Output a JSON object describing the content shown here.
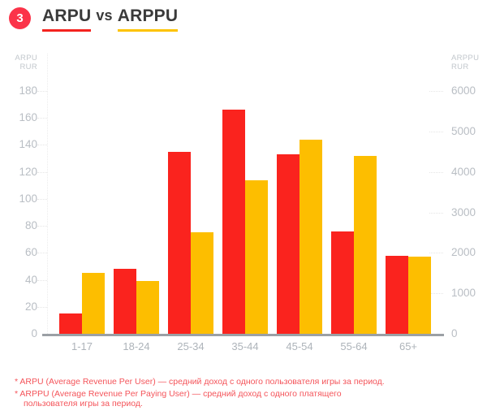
{
  "header": {
    "badge": "3",
    "title_word1": "ARPU",
    "title_vs": "vs",
    "title_word2": "ARPPU"
  },
  "chart_data": {
    "type": "bar",
    "title": "ARPU vs ARPPU",
    "categories": [
      "1-17",
      "18-24",
      "25-34",
      "35-44",
      "45-54",
      "55-64",
      "65+"
    ],
    "series": [
      {
        "name": "ARPU",
        "axis": "left",
        "color": "#FA231E",
        "values": [
          15,
          48,
          135,
          166,
          133,
          76,
          58
        ]
      },
      {
        "name": "ARPPU",
        "axis": "right",
        "color": "#FDBE00",
        "values": [
          1500,
          1300,
          2500,
          3800,
          4800,
          4400,
          1900
        ]
      }
    ],
    "left_axis": {
      "label_line1": "ARPU",
      "label_line2": "RUR",
      "min": 0,
      "max": 180,
      "step": 20
    },
    "right_axis": {
      "label_line1": "ARPPU",
      "label_line2": "RUR",
      "min": 0,
      "max": 6000,
      "step": 1000
    },
    "grid": "faint dotted tick segments near both axes",
    "legend_position": "none"
  },
  "footnotes": [
    "* ARPU (Average Revenue Per User) — средний доход с одного пользователя игры за период.",
    "* ARPPU (Average Revenue Per Paying User) — средний доход с одного платящего пользователя игры за период."
  ],
  "colors": {
    "arpu_red": "#FA231E",
    "arppu_yellow": "#FDBE00",
    "badge_red": "#FB3349",
    "underline_red": "#F4231F",
    "underline_yellow": "#FDC300",
    "axis_text": "#B9BEC4",
    "category_text": "#AEB4BA",
    "baseline_gray": "#9BA0A5",
    "title_text": "#3A3A3A",
    "footnote_pink": "#F4545A",
    "background": "#FFFFFF"
  }
}
